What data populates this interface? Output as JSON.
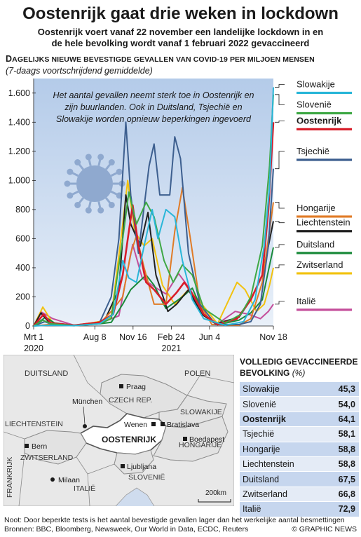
{
  "header": {
    "title": "Oostenrijk gaat drie weken in lockdown",
    "subtitle_line1": "Oostenrijk voert vanaf 22 november een landelijke lockdown in en",
    "subtitle_line2": "de hele bevolking wordt vanaf 1 februari 2022 gevaccineerd"
  },
  "chart_header": {
    "title_big": "D",
    "title_rest": "AGELIJKS NIEUWE BEVESTIGDE GEVALLEN VAN COVID-19 PER MILJOEN MENSEN",
    "subtitle": "(7-daags voortschrijdend gemiddelde)"
  },
  "chart_data": {
    "type": "line",
    "annotation": "Het aantal gevallen neemt sterk toe in Oostenrijk en zijn buurlanden. Ook in Duitsland, Tsjechië en Slowakije worden opnieuw beperkingen ingevoerd",
    "annotation_lines": [
      "Het aantal gevallen neemt sterk toe in Oostenrijk en",
      "zijn buurlanden. Ook in Duitsland, Tsjechië en",
      "Slowakije worden opnieuw beperkingen ingevoerd"
    ],
    "ylim": [
      0,
      1700
    ],
    "xlim": [
      "2020-03-01",
      "2021-11-18"
    ],
    "yticks": [
      {
        "value": 0,
        "label": "0"
      },
      {
        "value": 200,
        "label": "200"
      },
      {
        "value": 400,
        "label": "400"
      },
      {
        "value": 600,
        "label": "600"
      },
      {
        "value": 800,
        "label": "800"
      },
      {
        "value": 1000,
        "label": "1.000"
      },
      {
        "value": 1200,
        "label": "1.200"
      },
      {
        "value": 1400,
        "label": "1.400"
      },
      {
        "value": 1600,
        "label": "1.600"
      }
    ],
    "xticks": [
      {
        "date": "2020-03-01",
        "label": "Mrt 1",
        "label2": "2020"
      },
      {
        "date": "2020-08-08",
        "label": "Aug 8",
        "label2": ""
      },
      {
        "date": "2020-11-16",
        "label": "Nov 16",
        "label2": ""
      },
      {
        "date": "2021-02-24",
        "label": "Feb 24",
        "label2": "2021"
      },
      {
        "date": "2021-06-04",
        "label": "Jun 4",
        "label2": ""
      },
      {
        "date": "2021-11-18",
        "label": "Nov 18",
        "label2": ""
      }
    ],
    "grid": false,
    "series": [
      {
        "name": "Slowakije",
        "color": "#29b6d8",
        "label_value": 1640,
        "label_y": 1640,
        "bold": false,
        "points": [
          [
            "2020-03-01",
            0
          ],
          [
            "2020-04-10",
            5
          ],
          [
            "2020-06-15",
            2
          ],
          [
            "2020-08-20",
            15
          ],
          [
            "2020-09-25",
            80
          ],
          [
            "2020-10-20",
            450
          ],
          [
            "2020-11-05",
            330
          ],
          [
            "2020-11-25",
            300
          ],
          [
            "2020-12-15",
            550
          ],
          [
            "2021-01-05",
            800
          ],
          [
            "2021-01-20",
            600
          ],
          [
            "2021-02-10",
            800
          ],
          [
            "2021-03-05",
            750
          ],
          [
            "2021-03-25",
            450
          ],
          [
            "2021-04-20",
            180
          ],
          [
            "2021-05-20",
            50
          ],
          [
            "2021-07-15",
            5
          ],
          [
            "2021-09-01",
            30
          ],
          [
            "2021-10-01",
            180
          ],
          [
            "2021-10-25",
            550
          ],
          [
            "2021-11-08",
            950
          ],
          [
            "2021-11-18",
            1640
          ]
        ]
      },
      {
        "name": "Slovenië",
        "color": "#3ea844",
        "label_value": 1590,
        "label_y": 1500,
        "bold": false,
        "points": [
          [
            "2020-03-01",
            0
          ],
          [
            "2020-03-25",
            40
          ],
          [
            "2020-04-15",
            15
          ],
          [
            "2020-06-15",
            3
          ],
          [
            "2020-08-20",
            15
          ],
          [
            "2020-09-20",
            50
          ],
          [
            "2020-10-20",
            600
          ],
          [
            "2020-11-05",
            920
          ],
          [
            "2020-11-25",
            700
          ],
          [
            "2020-12-20",
            850
          ],
          [
            "2021-01-10",
            750
          ],
          [
            "2021-02-05",
            450
          ],
          [
            "2021-03-01",
            300
          ],
          [
            "2021-03-25",
            420
          ],
          [
            "2021-04-20",
            350
          ],
          [
            "2021-05-20",
            120
          ],
          [
            "2021-07-15",
            20
          ],
          [
            "2021-08-25",
            80
          ],
          [
            "2021-09-20",
            200
          ],
          [
            "2021-10-20",
            550
          ],
          [
            "2021-11-08",
            1100
          ],
          [
            "2021-11-18",
            1590
          ]
        ]
      },
      {
        "name": "Oostenrijk",
        "color": "#d81e2a",
        "label_value": 1400,
        "label_y": 1390,
        "bold": true,
        "points": [
          [
            "2020-03-01",
            0
          ],
          [
            "2020-03-27",
            80
          ],
          [
            "2020-04-15",
            20
          ],
          [
            "2020-06-15",
            5
          ],
          [
            "2020-08-20",
            25
          ],
          [
            "2020-09-25",
            80
          ],
          [
            "2020-10-20",
            350
          ],
          [
            "2020-11-05",
            650
          ],
          [
            "2020-11-15",
            830
          ],
          [
            "2020-11-30",
            550
          ],
          [
            "2020-12-20",
            300
          ],
          [
            "2021-01-10",
            250
          ],
          [
            "2021-02-10",
            150
          ],
          [
            "2021-03-10",
            230
          ],
          [
            "2021-03-30",
            300
          ],
          [
            "2021-04-25",
            200
          ],
          [
            "2021-05-20",
            80
          ],
          [
            "2021-06-25",
            10
          ],
          [
            "2021-08-15",
            50
          ],
          [
            "2021-09-20",
            180
          ],
          [
            "2021-10-20",
            350
          ],
          [
            "2021-11-05",
            800
          ],
          [
            "2021-11-18",
            1400
          ]
        ]
      },
      {
        "name": "Tsjechië",
        "color": "#3d5f8f",
        "label_value": 1080,
        "label_y": 1180,
        "bold": false,
        "points": [
          [
            "2020-03-01",
            0
          ],
          [
            "2020-03-30",
            30
          ],
          [
            "2020-04-20",
            8
          ],
          [
            "2020-06-15",
            5
          ],
          [
            "2020-08-20",
            20
          ],
          [
            "2020-09-20",
            200
          ],
          [
            "2020-10-10",
            600
          ],
          [
            "2020-10-28",
            1400
          ],
          [
            "2020-11-10",
            900
          ],
          [
            "2020-11-30",
            500
          ],
          [
            "2020-12-28",
            1100
          ],
          [
            "2021-01-10",
            1250
          ],
          [
            "2021-01-25",
            900
          ],
          [
            "2021-02-20",
            900
          ],
          [
            "2021-03-05",
            1300
          ],
          [
            "2021-03-20",
            1150
          ],
          [
            "2021-04-10",
            500
          ],
          [
            "2021-05-10",
            150
          ],
          [
            "2021-06-20",
            10
          ],
          [
            "2021-08-20",
            10
          ],
          [
            "2021-09-20",
            30
          ],
          [
            "2021-10-15",
            150
          ],
          [
            "2021-11-05",
            550
          ],
          [
            "2021-11-18",
            1080
          ]
        ]
      },
      {
        "name": "Hongarije",
        "color": "#e07b26",
        "label_value": 850,
        "label_y": 790,
        "bold": false,
        "points": [
          [
            "2020-03-01",
            0
          ],
          [
            "2020-04-10",
            10
          ],
          [
            "2020-06-15",
            2
          ],
          [
            "2020-08-20",
            15
          ],
          [
            "2020-09-20",
            100
          ],
          [
            "2020-10-20",
            200
          ],
          [
            "2020-11-10",
            500
          ],
          [
            "2020-11-25",
            620
          ],
          [
            "2020-12-15",
            400
          ],
          [
            "2021-01-10",
            150
          ],
          [
            "2021-02-10",
            150
          ],
          [
            "2021-03-05",
            650
          ],
          [
            "2021-03-25",
            950
          ],
          [
            "2021-04-15",
            600
          ],
          [
            "2021-05-10",
            150
          ],
          [
            "2021-06-10",
            10
          ],
          [
            "2021-08-20",
            5
          ],
          [
            "2021-09-20",
            50
          ],
          [
            "2021-10-20",
            300
          ],
          [
            "2021-11-05",
            600
          ],
          [
            "2021-11-18",
            850
          ]
        ]
      },
      {
        "name": "Liechtenstein",
        "color": "#202020",
        "label_value": 720,
        "label_y": 690,
        "bold": false,
        "points": [
          [
            "2020-03-01",
            0
          ],
          [
            "2020-03-20",
            90
          ],
          [
            "2020-04-15",
            10
          ],
          [
            "2020-06-15",
            5
          ],
          [
            "2020-09-01",
            30
          ],
          [
            "2020-10-10",
            250
          ],
          [
            "2020-10-28",
            900
          ],
          [
            "2020-11-10",
            700
          ],
          [
            "2020-12-05",
            550
          ],
          [
            "2020-12-25",
            780
          ],
          [
            "2021-01-15",
            350
          ],
          [
            "2021-02-15",
            100
          ],
          [
            "2021-03-10",
            150
          ],
          [
            "2021-04-10",
            250
          ],
          [
            "2021-05-15",
            80
          ],
          [
            "2021-06-20",
            15
          ],
          [
            "2021-08-20",
            60
          ],
          [
            "2021-09-20",
            180
          ],
          [
            "2021-10-20",
            350
          ],
          [
            "2021-11-05",
            550
          ],
          [
            "2021-11-18",
            720
          ]
        ]
      },
      {
        "name": "Duitsland",
        "color": "#1a8a3a",
        "label_value": 540,
        "label_y": 540,
        "bold": false,
        "points": [
          [
            "2020-03-01",
            0
          ],
          [
            "2020-04-01",
            60
          ],
          [
            "2020-04-25",
            20
          ],
          [
            "2020-06-15",
            5
          ],
          [
            "2020-08-20",
            15
          ],
          [
            "2020-09-20",
            25
          ],
          [
            "2020-10-20",
            150
          ],
          [
            "2020-11-10",
            250
          ],
          [
            "2020-12-20",
            350
          ],
          [
            "2021-01-10",
            280
          ],
          [
            "2021-02-10",
            120
          ],
          [
            "2021-03-25",
            200
          ],
          [
            "2021-04-20",
            260
          ],
          [
            "2021-05-20",
            80
          ],
          [
            "2021-06-25",
            8
          ],
          [
            "2021-08-20",
            40
          ],
          [
            "2021-09-20",
            90
          ],
          [
            "2021-10-20",
            180
          ],
          [
            "2021-11-05",
            380
          ],
          [
            "2021-11-18",
            540
          ]
        ]
      },
      {
        "name": "Zwitserland",
        "color": "#f2c20f",
        "label_value": 400,
        "label_y": 400,
        "bold": false,
        "points": [
          [
            "2020-03-01",
            0
          ],
          [
            "2020-03-25",
            130
          ],
          [
            "2020-04-20",
            20
          ],
          [
            "2020-06-15",
            3
          ],
          [
            "2020-08-20",
            30
          ],
          [
            "2020-09-20",
            60
          ],
          [
            "2020-10-20",
            700
          ],
          [
            "2020-11-02",
            1000
          ],
          [
            "2020-11-20",
            650
          ],
          [
            "2020-12-15",
            550
          ],
          [
            "2021-01-05",
            600
          ],
          [
            "2021-02-01",
            280
          ],
          [
            "2021-03-05",
            150
          ],
          [
            "2021-04-10",
            250
          ],
          [
            "2021-05-15",
            150
          ],
          [
            "2021-06-25",
            15
          ],
          [
            "2021-08-15",
            300
          ],
          [
            "2021-09-05",
            250
          ],
          [
            "2021-10-05",
            100
          ],
          [
            "2021-10-25",
            150
          ],
          [
            "2021-11-08",
            280
          ],
          [
            "2021-11-18",
            400
          ]
        ]
      },
      {
        "name": "Italië",
        "color": "#c44d9a",
        "label_value": 150,
        "label_y": 150,
        "bold": false,
        "points": [
          [
            "2020-03-01",
            0
          ],
          [
            "2020-03-22",
            95
          ],
          [
            "2020-04-20",
            50
          ],
          [
            "2020-06-15",
            5
          ],
          [
            "2020-08-20",
            20
          ],
          [
            "2020-10-10",
            70
          ],
          [
            "2020-11-15",
            560
          ],
          [
            "2020-12-10",
            330
          ],
          [
            "2021-01-10",
            270
          ],
          [
            "2021-02-10",
            220
          ],
          [
            "2021-03-15",
            360
          ],
          [
            "2021-04-15",
            250
          ],
          [
            "2021-05-20",
            80
          ],
          [
            "2021-06-25",
            15
          ],
          [
            "2021-08-10",
            100
          ],
          [
            "2021-09-15",
            80
          ],
          [
            "2021-10-15",
            50
          ],
          [
            "2021-11-05",
            100
          ],
          [
            "2021-11-18",
            150
          ]
        ]
      }
    ]
  },
  "map": {
    "labels": {
      "duitsland": "DUITSLAND",
      "polen": "POLEN",
      "czech": "CZECH REP.",
      "slowakije": "SLOWAKIJE",
      "liechtenstein": "LIECHTENSTEIN",
      "oostenrijk": "OOSTENRIJK",
      "hongarije": "HONGARIJE",
      "zwitserland": "ZWITSERLAND",
      "frankrijk": "FRANKRIJK",
      "slovenie": "SLOVENIË",
      "italie": "ITALIË",
      "praag": "Praag",
      "munchen": "München",
      "wenen": "Wenen",
      "bratislava": "Bratislava",
      "bern": "Bern",
      "boedapest": "Boedapest",
      "ljubljana": "Ljubljana",
      "milaan": "Milaan",
      "scale": "200km"
    }
  },
  "vaccination": {
    "heading_line1": "VOLLEDIG GEVACCINEERDE",
    "heading_line2": "BEVOLKING",
    "heading_unit": "(%)",
    "rows": [
      {
        "country": "Slowakije",
        "value": "45,3",
        "bold": false
      },
      {
        "country": "Slovenië",
        "value": "54,0",
        "bold": false
      },
      {
        "country": "Oostenrijk",
        "value": "64,1",
        "bold": true
      },
      {
        "country": "Tsjechië",
        "value": "58,1",
        "bold": false
      },
      {
        "country": "Hongarije",
        "value": "58,8",
        "bold": false
      },
      {
        "country": "Liechtenstein",
        "value": "58,8",
        "bold": false
      },
      {
        "country": "Duitsland",
        "value": "67,5",
        "bold": false
      },
      {
        "country": "Zwitserland",
        "value": "66,8",
        "bold": false
      },
      {
        "country": "Italië",
        "value": "72,9",
        "bold": false
      }
    ]
  },
  "footer": {
    "note": "Noot: Door beperkte tests is het aantal bevestigde gevallen lager dan het werkelijke aantal besmettingen",
    "sources": "Bronnen: BBC, Bloomberg, Newsweek, Our World in Data, ECDC, Reuters",
    "credit": "© GRAPHIC NEWS"
  },
  "colors": {
    "plot_bg_top": "#b4cbe9",
    "plot_bg_bottom": "#e9f0f9",
    "virus": "#8fa9cf",
    "map_land": "#e6e6e6",
    "map_austria": "#ffffff",
    "table_dark": "#c6d6ee",
    "table_light": "#e4ebf6"
  }
}
